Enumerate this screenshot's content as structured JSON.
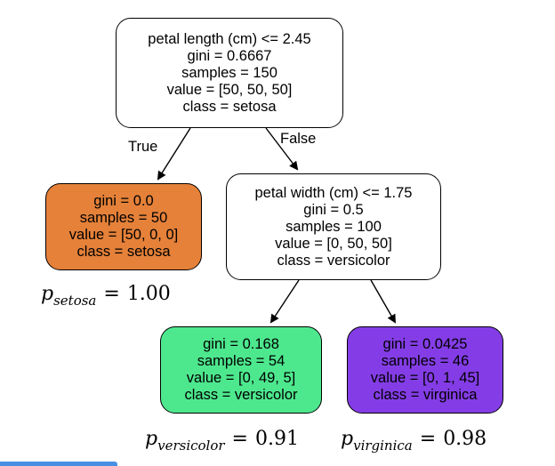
{
  "colors": {
    "root_fill": "#ffffff",
    "setosa_fill": "#e58139",
    "mid_fill": "#ffffff",
    "versicolor_fill": "#4de88e",
    "virginica_fill": "#843de6",
    "edge": "#000000",
    "accent_bar": "#4a90e2"
  },
  "tree": {
    "root": {
      "lines": [
        "petal length (cm) <= 2.45",
        "gini = 0.6667",
        "samples = 150",
        "value = [50, 50, 50]",
        "class = setosa"
      ]
    },
    "left": {
      "lines": [
        "gini = 0.0",
        "samples = 50",
        "value = [50, 0, 0]",
        "class = setosa"
      ]
    },
    "right": {
      "lines": [
        "petal width (cm) <= 1.75",
        "gini = 0.5",
        "samples = 100",
        "value = [0, 50, 50]",
        "class = versicolor"
      ]
    },
    "right_left": {
      "lines": [
        "gini = 0.168",
        "samples = 54",
        "value = [0, 49, 5]",
        "class = versicolor"
      ]
    },
    "right_right": {
      "lines": [
        "gini = 0.0425",
        "samples = 46",
        "value = [0, 1, 45]",
        "class = virginica"
      ]
    }
  },
  "edges": {
    "true_label": "True",
    "false_label": "False"
  },
  "probabilities": {
    "setosa": {
      "symbol": "p",
      "subscript": "setosa",
      "equals": "=",
      "value": "1.00"
    },
    "versicolor": {
      "symbol": "p",
      "subscript": "versicolor",
      "equals": "=",
      "value": "0.91"
    },
    "virginica": {
      "symbol": "p",
      "subscript": "virginica",
      "equals": "=",
      "value": "0.98"
    }
  }
}
